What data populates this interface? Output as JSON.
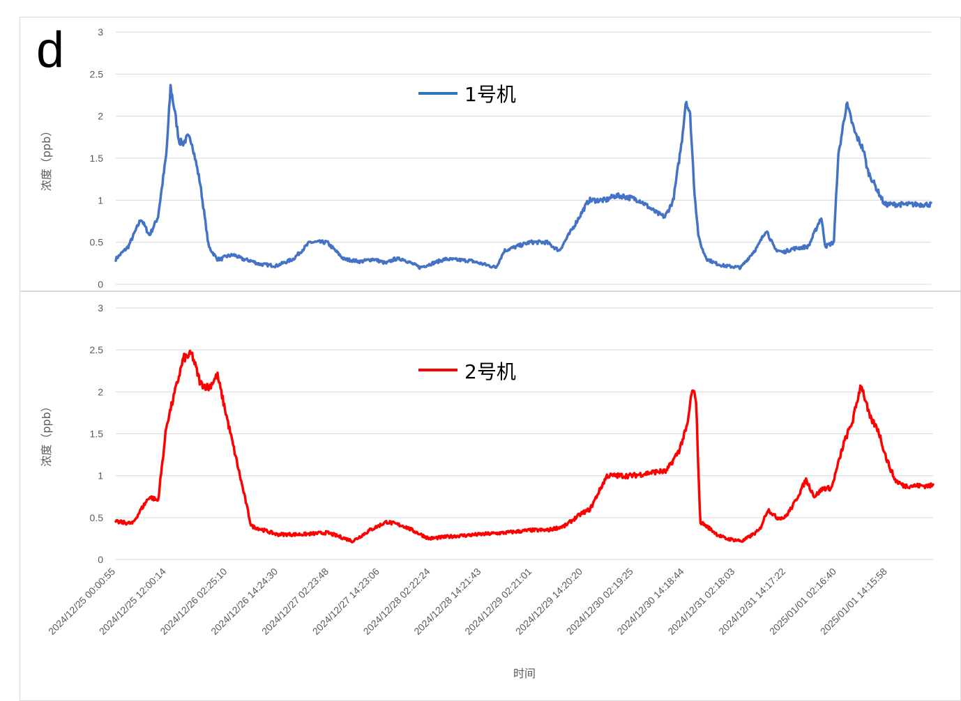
{
  "panel_label": "d",
  "chart_data": [
    {
      "type": "line",
      "title": "",
      "xlabel": "",
      "ylabel": "浓度（ppb）",
      "ylim": [
        0,
        3
      ],
      "yticks": [
        "0",
        "0.5",
        "1",
        "1.5",
        "2",
        "2.5",
        "3"
      ],
      "grid": true,
      "legend_position": "top-center",
      "series": [
        {
          "name": "1号机",
          "color": "#4472c4",
          "legend_color": "#2e75b6",
          "x": [
            "2024/12/25 00:00",
            "2024/12/25 03:00",
            "2024/12/25 06:00",
            "2024/12/25 08:00",
            "2024/12/25 10:00",
            "2024/12/25 12:00",
            "2024/12/25 13:00",
            "2024/12/25 14:00",
            "2024/12/25 15:00",
            "2024/12/25 16:00",
            "2024/12/25 17:00",
            "2024/12/25 18:00",
            "2024/12/25 20:00",
            "2024/12/25 22:00",
            "2024/12/26 00:00",
            "2024/12/26 01:00",
            "2024/12/26 02:00",
            "2024/12/26 04:00",
            "2024/12/26 06:00",
            "2024/12/26 08:00",
            "2024/12/26 10:00",
            "2024/12/26 14:00",
            "2024/12/26 18:00",
            "2024/12/26 22:00",
            "2024/12/27 02:00",
            "2024/12/27 06:00",
            "2024/12/27 10:00",
            "2024/12/27 13:00",
            "2024/12/27 16:00",
            "2024/12/27 18:00",
            "2024/12/27 20:00",
            "2024/12/28 00:00",
            "2024/12/28 06:00",
            "2024/12/28 12:00",
            "2024/12/28 18:00",
            "2024/12/28 20:00",
            "2024/12/29 02:00",
            "2024/12/29 06:00",
            "2024/12/29 09:00",
            "2024/12/29 12:00",
            "2024/12/29 16:00",
            "2024/12/29 20:00",
            "2024/12/29 22:00",
            "2024/12/30 00:00",
            "2024/12/30 04:00",
            "2024/12/30 08:00",
            "2024/12/30 10:00",
            "2024/12/30 12:00",
            "2024/12/30 14:00",
            "2024/12/30 15:00",
            "2024/12/30 16:00",
            "2024/12/30 17:00",
            "2024/12/30 18:00",
            "2024/12/30 19:00",
            "2024/12/30 20:00",
            "2024/12/30 22:00",
            "2024/12/31 00:00",
            "2024/12/31 04:00",
            "2024/12/31 08:00",
            "2024/12/31 10:00",
            "2024/12/31 12:00",
            "2024/12/31 14:00",
            "2024/12/31 16:00",
            "2024/12/31 20:00",
            "2024/12/31 23:00",
            "2025/01/01 00:00",
            "2025/01/01 02:00",
            "2025/01/01 03:00",
            "2025/01/01 05:00",
            "2025/01/01 07:00",
            "2025/01/01 09:00",
            "2025/01/01 10:00",
            "2025/01/01 12:00",
            "2025/01/01 14:00",
            "2025/01/01 15:00",
            "2025/01/01 17:00",
            "2025/01/01 19:00",
            "2025/01/01 22:00",
            "2025/01/02 00:00",
            "2025/01/02 01:00"
          ],
          "y": [
            0.3,
            0.45,
            0.78,
            0.58,
            0.8,
            1.55,
            2.35,
            2.05,
            1.7,
            1.68,
            1.75,
            1.7,
            1.2,
            0.45,
            0.3,
            0.3,
            0.33,
            0.35,
            0.3,
            0.28,
            0.24,
            0.22,
            0.3,
            0.5,
            0.5,
            0.3,
            0.27,
            0.3,
            0.25,
            0.3,
            0.3,
            0.2,
            0.3,
            0.28,
            0.2,
            0.4,
            0.5,
            0.5,
            0.4,
            0.65,
            1.0,
            1.0,
            1.05,
            1.05,
            1.0,
            0.85,
            0.8,
            1.0,
            1.7,
            2.2,
            2.0,
            1.1,
            0.55,
            0.4,
            0.3,
            0.25,
            0.22,
            0.2,
            0.45,
            0.65,
            0.42,
            0.38,
            0.42,
            0.45,
            0.8,
            0.45,
            0.5,
            1.5,
            2.15,
            1.8,
            1.6,
            1.35,
            1.15,
            0.95,
            0.95,
            0.95,
            0.95,
            0.95,
            0.95,
            0.95
          ]
        }
      ]
    },
    {
      "type": "line",
      "title": "",
      "xlabel": "时间",
      "ylabel": "浓度（ppb）",
      "ylim": [
        0,
        3
      ],
      "yticks": [
        "0",
        "0.5",
        "1",
        "1.5",
        "2",
        "2.5",
        "3"
      ],
      "grid": true,
      "legend_position": "top-center",
      "x_tick_labels": [
        "2024/12/25 00:00:55",
        "2024/12/25 12:00:14",
        "2024/12/26 02:25:10",
        "2024/12/26 14:24:30",
        "2024/12/27 02:23:48",
        "2024/12/27 14:23:06",
        "2024/12/28 02:22:24",
        "2024/12/28 14:21:43",
        "2024/12/29 02:21:01",
        "2024/12/29 14:20:20",
        "2024/12/30 02:19:25",
        "2024/12/30 14:18:44",
        "2024/12/31 02:18:03",
        "2024/12/31 14:17:22",
        "2025/01/01 02:16:40",
        "2025/01/01 14:15:58"
      ],
      "series": [
        {
          "name": "2号机",
          "color": "#ff0000",
          "legend_color": "#ff0000",
          "x": [
            "2024/12/25 00:00",
            "2024/12/25 04:00",
            "2024/12/25 06:00",
            "2024/12/25 08:00",
            "2024/12/25 10:00",
            "2024/12/25 12:00",
            "2024/12/25 14:00",
            "2024/12/25 16:00",
            "2024/12/25 18:00",
            "2024/12/25 20:00",
            "2024/12/25 22:00",
            "2024/12/26 00:00",
            "2024/12/26 04:00",
            "2024/12/26 08:00",
            "2024/12/26 14:00",
            "2024/12/26 20:00",
            "2024/12/27 02:00",
            "2024/12/27 08:00",
            "2024/12/27 12:00",
            "2024/12/27 16:00",
            "2024/12/27 20:00",
            "2024/12/28 02:00",
            "2024/12/28 08:00",
            "2024/12/28 14:00",
            "2024/12/28 20:00",
            "2024/12/29 02:00",
            "2024/12/29 06:00",
            "2024/12/29 10:00",
            "2024/12/29 14:00",
            "2024/12/29 16:00",
            "2024/12/29 20:00",
            "2024/12/30 02:00",
            "2024/12/30 08:00",
            "2024/12/30 10:00",
            "2024/12/30 13:00",
            "2024/12/30 15:00",
            "2024/12/30 16:00",
            "2024/12/30 17:00",
            "2024/12/30 18:00",
            "2024/12/30 20:00",
            "2024/12/30 22:00",
            "2024/12/31 00:00",
            "2024/12/31 04:00",
            "2024/12/31 08:00",
            "2024/12/31 10:00",
            "2024/12/31 12:00",
            "2024/12/31 14:00",
            "2024/12/31 16:00",
            "2024/12/31 19:00",
            "2024/12/31 21:00",
            "2024/12/31 23:00",
            "2025/01/01 01:00",
            "2025/01/01 04:00",
            "2025/01/01 06:00",
            "2025/01/01 08:00",
            "2025/01/01 10:00",
            "2025/01/01 12:00",
            "2025/01/01 14:00",
            "2025/01/01 16:00",
            "2025/01/01 18:00",
            "2025/01/01 20:00",
            "2025/01/01 22:00",
            "2025/01/02 00:00"
          ],
          "y": [
            0.45,
            0.43,
            0.6,
            0.75,
            0.7,
            1.6,
            2.0,
            2.4,
            2.45,
            2.1,
            2.05,
            2.2,
            1.3,
            0.4,
            0.3,
            0.3,
            0.32,
            0.22,
            0.35,
            0.45,
            0.4,
            0.25,
            0.28,
            0.3,
            0.32,
            0.35,
            0.35,
            0.4,
            0.55,
            0.6,
            1.0,
            1.0,
            1.05,
            1.05,
            1.3,
            1.6,
            2.0,
            1.95,
            0.45,
            0.38,
            0.3,
            0.25,
            0.22,
            0.35,
            0.6,
            0.5,
            0.5,
            0.65,
            0.95,
            0.75,
            0.85,
            0.85,
            1.4,
            1.65,
            2.1,
            1.7,
            1.55,
            1.2,
            0.95,
            0.88,
            0.88,
            0.88,
            0.88
          ]
        }
      ]
    }
  ]
}
